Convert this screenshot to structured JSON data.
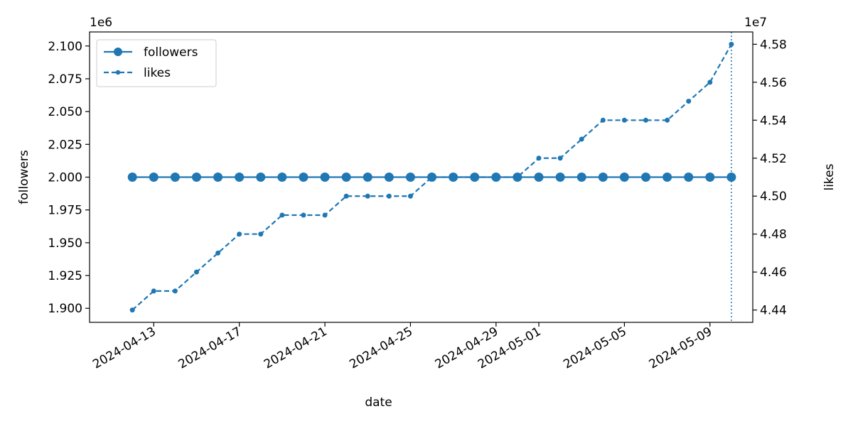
{
  "chart_data": {
    "type": "line",
    "xlabel": "date",
    "ylabel_left": "followers",
    "ylabel_right": "likes",
    "left_multiplier": "1e6",
    "right_multiplier": "1e7",
    "left_ylim": [
      1.8893,
      2.1107
    ],
    "right_ylim": [
      4.4335,
      4.5865
    ],
    "left_ticks": [
      "1.900",
      "1.925",
      "1.950",
      "1.975",
      "2.000",
      "2.025",
      "2.050",
      "2.075",
      "2.100"
    ],
    "right_ticks": [
      "4.44",
      "4.46",
      "4.48",
      "4.50",
      "4.52",
      "4.54",
      "4.56",
      "4.58"
    ],
    "x_tick_labels": [
      "2024-04-13",
      "2024-04-17",
      "2024-04-21",
      "2024-04-25",
      "2024-04-29",
      "2024-05-01",
      "2024-05-05",
      "2024-05-09"
    ],
    "x_range": [
      "2024-04-10",
      "2024-05-11"
    ],
    "vline_date": "2024-05-10",
    "legend_position": "upper-left",
    "grid": false,
    "color": "#1f77b4",
    "dates": [
      "2024-04-12",
      "2024-04-13",
      "2024-04-14",
      "2024-04-15",
      "2024-04-16",
      "2024-04-17",
      "2024-04-18",
      "2024-04-19",
      "2024-04-20",
      "2024-04-21",
      "2024-04-22",
      "2024-04-23",
      "2024-04-24",
      "2024-04-25",
      "2024-04-26",
      "2024-04-27",
      "2024-04-28",
      "2024-04-29",
      "2024-04-30",
      "2024-05-01",
      "2024-05-02",
      "2024-05-03",
      "2024-05-04",
      "2024-05-05",
      "2024-05-06",
      "2024-05-07",
      "2024-05-08",
      "2024-05-09",
      "2024-05-10"
    ],
    "series": [
      {
        "name": "followers",
        "axis": "left",
        "style": "solid",
        "marker": "large-circle",
        "values": [
          2.0,
          2.0,
          2.0,
          2.0,
          2.0,
          2.0,
          2.0,
          2.0,
          2.0,
          2.0,
          2.0,
          2.0,
          2.0,
          2.0,
          2.0,
          2.0,
          2.0,
          2.0,
          2.0,
          2.0,
          2.0,
          2.0,
          2.0,
          2.0,
          2.0,
          2.0,
          2.0,
          2.0,
          2.0
        ]
      },
      {
        "name": "likes",
        "axis": "right",
        "style": "dashed",
        "marker": "small-circle",
        "values": [
          4.44,
          4.45,
          4.45,
          4.46,
          4.47,
          4.48,
          4.48,
          4.49,
          4.49,
          4.49,
          4.5,
          4.5,
          4.5,
          4.5,
          4.51,
          4.51,
          4.51,
          4.51,
          4.51,
          4.52,
          4.52,
          4.53,
          4.54,
          4.54,
          4.54,
          4.54,
          4.55,
          4.56,
          4.58
        ]
      }
    ]
  }
}
